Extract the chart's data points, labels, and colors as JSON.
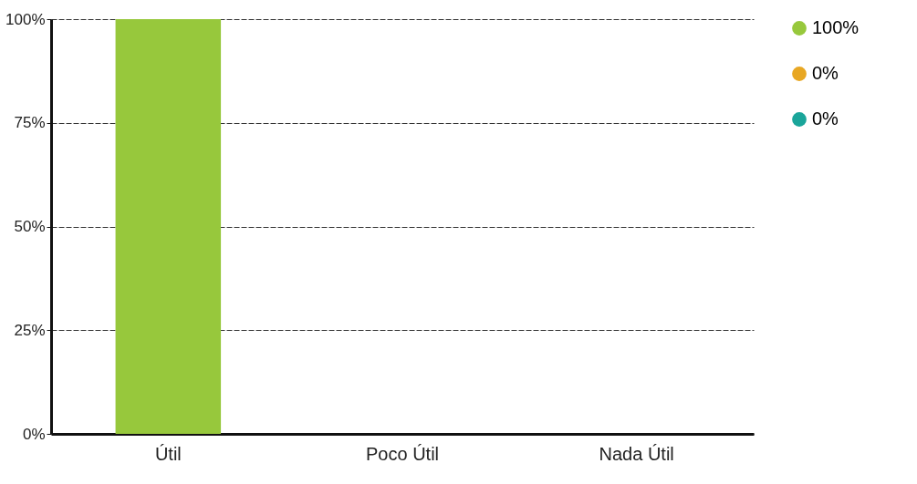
{
  "chart_data": {
    "type": "bar",
    "categories": [
      "Útil",
      "Poco Útil",
      "Nada Útil"
    ],
    "series": [
      {
        "name": "100%",
        "color": "#97c83c",
        "values": [
          100,
          null,
          null
        ]
      },
      {
        "name": "0%",
        "color": "#e8a723",
        "values": [
          null,
          0,
          null
        ]
      },
      {
        "name": "0%",
        "color": "#1aa59a",
        "values": [
          null,
          null,
          0
        ]
      }
    ],
    "ylim": [
      0,
      100
    ],
    "yticks": [
      {
        "value": 0,
        "label": "0%"
      },
      {
        "value": 25,
        "label": "25%"
      },
      {
        "value": 50,
        "label": "50%"
      },
      {
        "value": 75,
        "label": "75%"
      },
      {
        "value": 100,
        "label": "100%"
      }
    ],
    "grid": "y",
    "legend": "right"
  }
}
